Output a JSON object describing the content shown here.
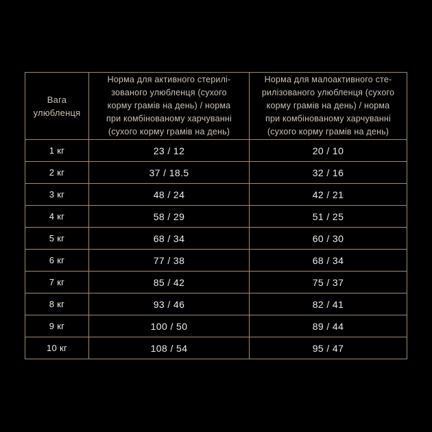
{
  "colors": {
    "background": "#000000",
    "table_border": "#a68b6c",
    "header_text": "#cbc1b4",
    "body_text": "#efedea"
  },
  "table": {
    "headers": {
      "weight": "Вага\nулюбленця",
      "active": "Норма для активного стерилі-\nзованого улюбленця (сухого\nкорму грамів на день) / норма\nпри комбінованому харчуванні\n(сухого корму грамів на день)",
      "inactive": "Норма для малоактивного сте-\nрилізованого улюбленця (сухого\nкорму грамів на день) / норма\nпри комбінованому харчуванні\n(сухого корму грамів на день)"
    },
    "rows": [
      {
        "weight": "1 кг",
        "active": "23 / 12",
        "inactive": "20 / 10"
      },
      {
        "weight": "2 кг",
        "active": "37 / 18.5",
        "inactive": "32 / 16"
      },
      {
        "weight": "3 кг",
        "active": "48 / 24",
        "inactive": "42 / 21"
      },
      {
        "weight": "4 кг",
        "active": "58 / 29",
        "inactive": "51 / 25"
      },
      {
        "weight": "5 кг",
        "active": "68 / 34",
        "inactive": "60 / 30"
      },
      {
        "weight": "6 кг",
        "active": "77 / 38",
        "inactive": "68 / 34"
      },
      {
        "weight": "7 кг",
        "active": "85 / 42",
        "inactive": "75 / 37"
      },
      {
        "weight": "8 кг",
        "active": "93 / 46",
        "inactive": "82 / 41"
      },
      {
        "weight": "9 кг",
        "active": "100 / 50",
        "inactive": "89 / 44"
      },
      {
        "weight": "10 кг",
        "active": "108 / 54",
        "inactive": "95 / 47"
      }
    ]
  },
  "chart_data": {
    "type": "table",
    "title": "",
    "columns": [
      "Вага улюбленця",
      "Норма для активного стерилізованого улюбленця (сухого корму грамів на день) / норма при комбінованому харчуванні (сухого корму грамів на день)",
      "Норма для малоактивного стерилізованого улюбленця (сухого корму грамів на день) / норма при комбінованому харчуванні (сухого корму грамів на день)"
    ],
    "rows": [
      [
        "1 кг",
        "23 / 12",
        "20 / 10"
      ],
      [
        "2 кг",
        "37 / 18.5",
        "32 / 16"
      ],
      [
        "3 кг",
        "48 / 24",
        "42 / 21"
      ],
      [
        "4 кг",
        "58 / 29",
        "51 / 25"
      ],
      [
        "5 кг",
        "68 / 34",
        "60 / 30"
      ],
      [
        "6 кг",
        "77 / 38",
        "68 / 34"
      ],
      [
        "7 кг",
        "85 / 42",
        "75 / 37"
      ],
      [
        "8 кг",
        "93 / 46",
        "82 / 41"
      ],
      [
        "9 кг",
        "100 / 50",
        "89 / 44"
      ],
      [
        "10 кг",
        "108 / 54",
        "95 / 47"
      ]
    ]
  }
}
